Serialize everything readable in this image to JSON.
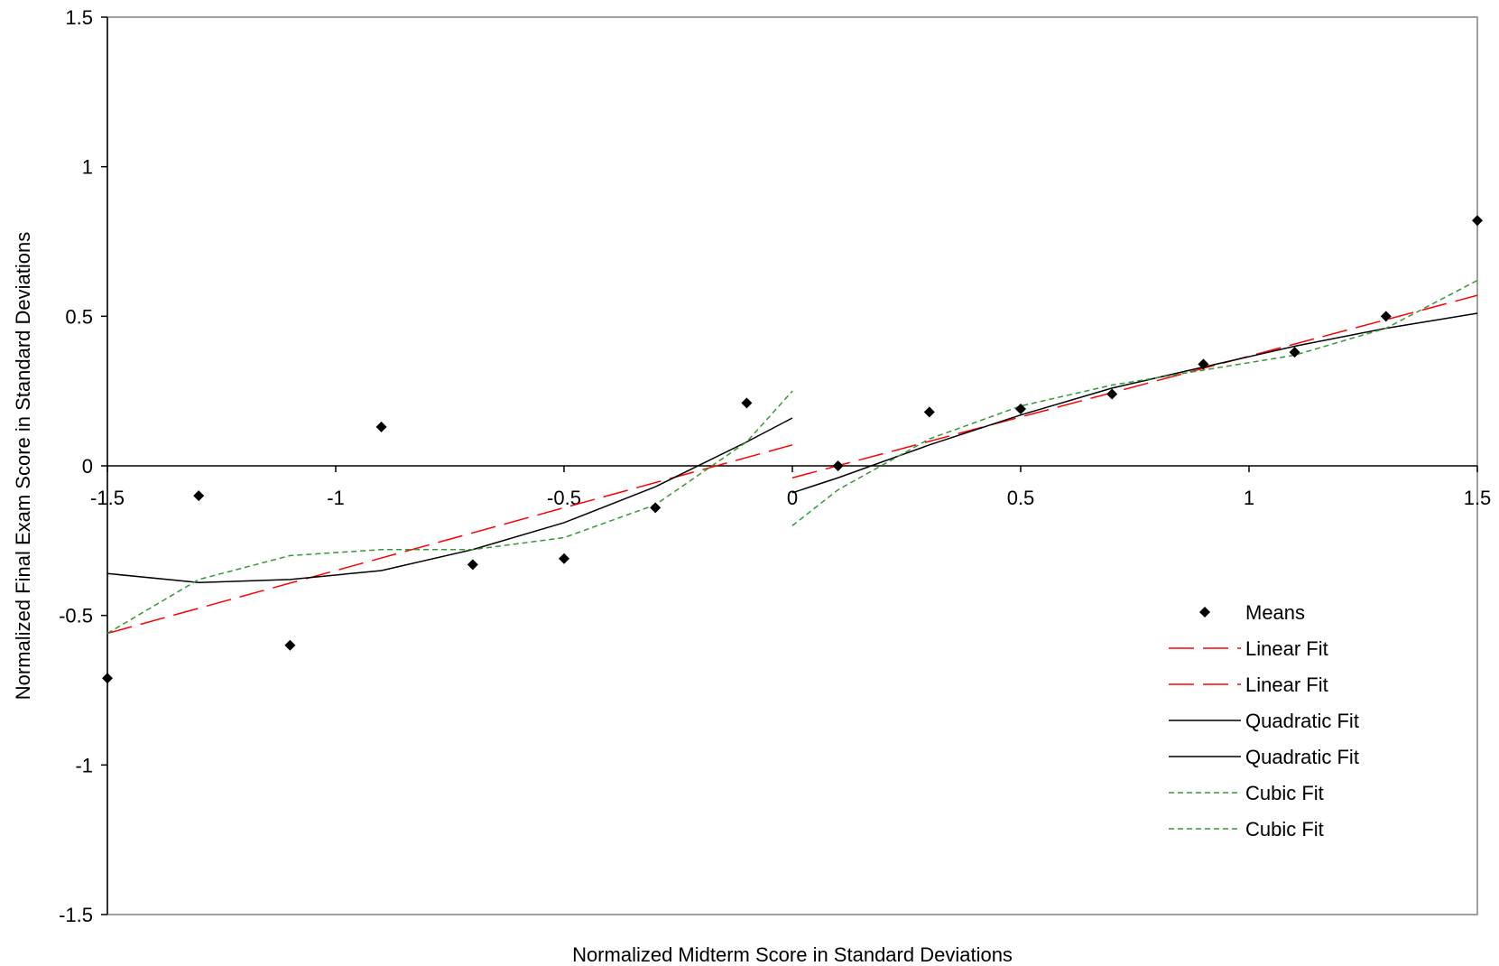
{
  "chart_data": {
    "type": "scatter",
    "title": "",
    "xlabel": "Normalized Midterm Score in Standard Deviations",
    "ylabel": "Normalized Final Exam Score in Standard Deviations",
    "xlim": [
      -1.5,
      1.5
    ],
    "ylim": [
      -1.5,
      1.5
    ],
    "x_ticks": [
      -1.5,
      -1,
      -0.5,
      0,
      0.5,
      1,
      1.5
    ],
    "y_ticks": [
      -1.5,
      -1,
      -0.5,
      0,
      0.5,
      1,
      1.5
    ],
    "x_tick_labels": [
      "-1.5",
      "-1",
      "-0.5",
      "0",
      "0.5",
      "1",
      "1.5"
    ],
    "y_tick_labels": [
      "-1.5",
      "-1",
      "-0.5",
      "0",
      "0.5",
      "1",
      "1.5"
    ],
    "grid": false,
    "legend_position": "bottom-right",
    "series": [
      {
        "name": "Means",
        "kind": "points",
        "color": "#000000",
        "marker": "diamond",
        "x": [
          -1.5,
          -1.3,
          -1.1,
          -0.9,
          -0.7,
          -0.5,
          -0.3,
          -0.1,
          0.1,
          0.3,
          0.5,
          0.7,
          0.9,
          1.1,
          1.3,
          1.5
        ],
        "y": [
          -0.71,
          -0.1,
          -0.6,
          0.13,
          -0.33,
          -0.31,
          -0.14,
          0.21,
          0.0,
          0.18,
          0.19,
          0.24,
          0.34,
          0.38,
          0.5,
          0.82
        ]
      },
      {
        "name": "Linear Fit",
        "kind": "line",
        "color": "#ff0000",
        "dash": "long-dash",
        "x": [
          -1.5,
          0.0
        ],
        "y": [
          -0.56,
          0.07
        ]
      },
      {
        "name": "Linear Fit",
        "kind": "line",
        "color": "#ff0000",
        "dash": "long-dash",
        "x": [
          0.0,
          1.5
        ],
        "y": [
          -0.04,
          0.57
        ]
      },
      {
        "name": "Quadratic Fit",
        "kind": "line",
        "color": "#000000",
        "dash": "solid",
        "x": [
          -1.5,
          -1.3,
          -1.1,
          -0.9,
          -0.7,
          -0.5,
          -0.3,
          -0.1,
          0.0
        ],
        "y": [
          -0.36,
          -0.39,
          -0.38,
          -0.35,
          -0.28,
          -0.19,
          -0.07,
          0.08,
          0.16
        ]
      },
      {
        "name": "Quadratic Fit",
        "kind": "line",
        "color": "#000000",
        "dash": "solid",
        "x": [
          0.0,
          0.1,
          0.3,
          0.5,
          0.7,
          0.9,
          1.1,
          1.3,
          1.5
        ],
        "y": [
          -0.09,
          -0.04,
          0.07,
          0.17,
          0.26,
          0.33,
          0.4,
          0.46,
          0.51
        ]
      },
      {
        "name": "Cubic Fit",
        "kind": "line",
        "color": "#339933",
        "dash": "short-dash",
        "x": [
          -1.5,
          -1.3,
          -1.1,
          -0.9,
          -0.7,
          -0.5,
          -0.3,
          -0.1,
          0.0
        ],
        "y": [
          -0.56,
          -0.38,
          -0.3,
          -0.28,
          -0.28,
          -0.24,
          -0.13,
          0.08,
          0.25
        ]
      },
      {
        "name": "Cubic Fit",
        "kind": "line",
        "color": "#339933",
        "dash": "short-dash",
        "x": [
          0.0,
          0.1,
          0.3,
          0.5,
          0.7,
          0.9,
          1.1,
          1.3,
          1.5
        ],
        "y": [
          -0.2,
          -0.08,
          0.09,
          0.2,
          0.27,
          0.32,
          0.37,
          0.46,
          0.62
        ]
      }
    ]
  }
}
